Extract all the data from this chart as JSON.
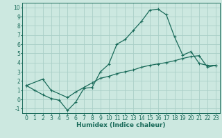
{
  "xlabel": "Humidex (Indice chaleur)",
  "ylabel": "",
  "background_color": "#cce8e0",
  "grid_color": "#aacfc8",
  "line_color": "#1a6b5a",
  "xlim": [
    -0.5,
    23.5
  ],
  "ylim": [
    -1.5,
    10.5
  ],
  "xticks": [
    0,
    1,
    2,
    3,
    4,
    5,
    6,
    7,
    8,
    9,
    10,
    11,
    12,
    13,
    14,
    15,
    16,
    17,
    18,
    19,
    20,
    21,
    22,
    23
  ],
  "yticks": [
    -1,
    0,
    1,
    2,
    3,
    4,
    5,
    6,
    7,
    8,
    9,
    10
  ],
  "line1_x": [
    0,
    1,
    2,
    3,
    4,
    5,
    6,
    7,
    8,
    9,
    10,
    11,
    12,
    13,
    14,
    15,
    16,
    17,
    18,
    19,
    20,
    21,
    22,
    23
  ],
  "line1_y": [
    1.5,
    1.0,
    0.5,
    0.1,
    -0.1,
    -1.2,
    -0.3,
    1.2,
    1.3,
    3.0,
    3.8,
    6.0,
    6.5,
    7.5,
    8.5,
    9.7,
    9.8,
    9.2,
    6.8,
    4.8,
    5.2,
    3.9,
    3.7,
    3.7
  ],
  "line2_x": [
    0,
    2,
    3,
    5,
    6,
    7,
    8,
    9,
    10,
    11,
    12,
    13,
    14,
    15,
    16,
    17,
    18,
    19,
    20,
    21,
    22,
    23
  ],
  "line2_y": [
    1.5,
    2.2,
    1.0,
    0.2,
    0.8,
    1.3,
    1.8,
    2.3,
    2.5,
    2.8,
    3.0,
    3.2,
    3.5,
    3.7,
    3.85,
    4.0,
    4.2,
    4.45,
    4.65,
    4.75,
    3.5,
    3.7
  ],
  "marker": "+",
  "markersize": 3,
  "linewidth": 0.9,
  "fontsize_ticks": 5.5,
  "fontsize_xlabel": 6.5
}
